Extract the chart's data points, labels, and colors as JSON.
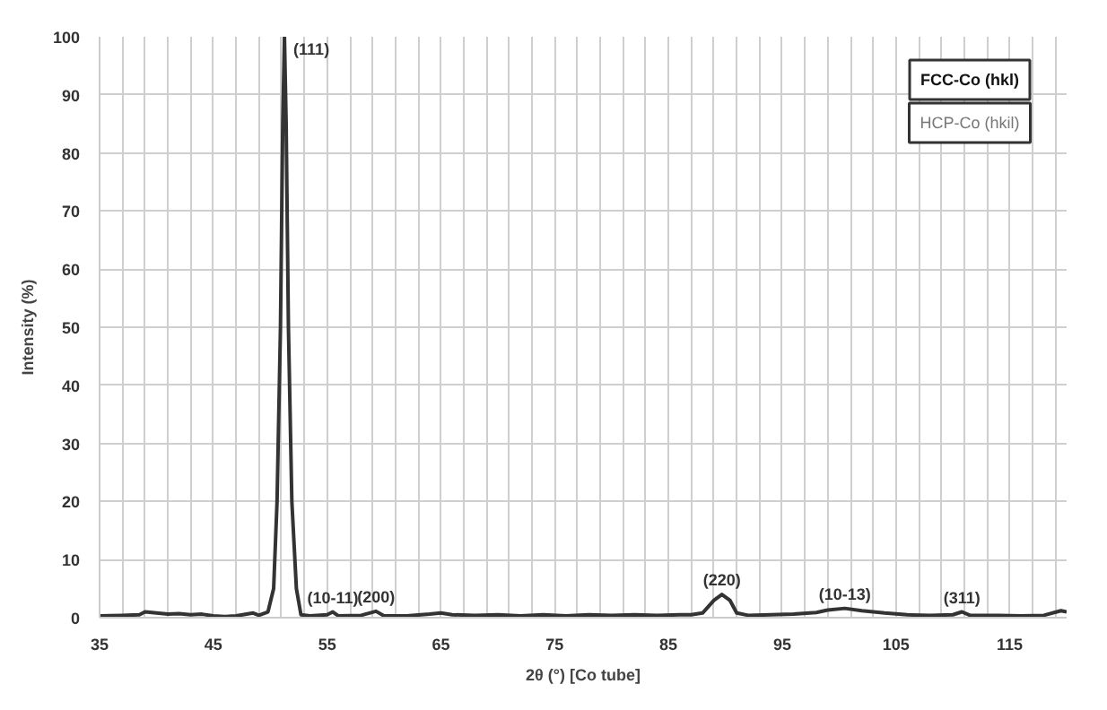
{
  "chart_data": {
    "type": "line",
    "xlabel": "2θ (°) [Co tube]",
    "ylabel": "Intensity (%)",
    "x": [
      35,
      37,
      38.5,
      39,
      40,
      41,
      42,
      43,
      44,
      45,
      46,
      47,
      48.5,
      49,
      49.8,
      50.3,
      50.6,
      50.9,
      51.1,
      51.25,
      51.4,
      51.6,
      51.9,
      52.3,
      52.7,
      53.5,
      55,
      55.5,
      56,
      58,
      59.3,
      60,
      62,
      64,
      65,
      66,
      68,
      70,
      72,
      74,
      76,
      78,
      80,
      82,
      84,
      86,
      87,
      88,
      89,
      89.7,
      90.4,
      91,
      92,
      94,
      96,
      98,
      99,
      100.5,
      102,
      104,
      106,
      108,
      110,
      110.8,
      111.5,
      114,
      116,
      118,
      119.5,
      120
    ],
    "series": [
      {
        "color": "#333333",
        "values": [
          0.3,
          0.4,
          0.5,
          1.0,
          0.8,
          0.6,
          0.7,
          0.5,
          0.6,
          0.3,
          0.2,
          0.3,
          0.8,
          0.4,
          1,
          5,
          20,
          50,
          85,
          100,
          85,
          50,
          20,
          5,
          0.5,
          0.3,
          0.5,
          1.0,
          0.3,
          0.4,
          1.1,
          0.3,
          0.3,
          0.6,
          0.8,
          0.5,
          0.4,
          0.5,
          0.3,
          0.5,
          0.3,
          0.5,
          0.4,
          0.5,
          0.4,
          0.5,
          0.5,
          0.8,
          3,
          4,
          3,
          0.8,
          0.4,
          0.5,
          0.6,
          0.9,
          1.3,
          1.6,
          1.2,
          0.8,
          0.5,
          0.4,
          0.5,
          1.0,
          0.4,
          0.4,
          0.3,
          0.4,
          1.2,
          1.0
        ]
      }
    ],
    "xlim": [
      35,
      120
    ],
    "xticks": [
      35,
      {
        "value": 37,
        "label": null
      },
      {
        "value": 39,
        "label": null
      },
      {
        "value": 41,
        "label": null
      },
      {
        "value": 43,
        "label": null
      },
      45,
      {
        "value": 47,
        "label": null
      },
      {
        "value": 49,
        "label": null
      },
      {
        "value": 51,
        "label": null
      },
      {
        "value": 53,
        "label": null
      },
      55,
      {
        "value": 57,
        "label": null
      },
      {
        "value": 59,
        "label": null
      },
      {
        "value": 61,
        "label": null
      },
      {
        "value": 63,
        "label": null
      },
      65,
      {
        "value": 67,
        "label": null
      },
      {
        "value": 69,
        "label": null
      },
      {
        "value": 71,
        "label": null
      },
      {
        "value": 73,
        "label": null
      },
      75,
      {
        "value": 77,
        "label": null
      },
      {
        "value": 79,
        "label": null
      },
      {
        "value": 81,
        "label": null
      },
      {
        "value": 83,
        "label": null
      },
      85,
      {
        "value": 87,
        "label": null
      },
      {
        "value": 89,
        "label": null
      },
      {
        "value": 91,
        "label": null
      },
      {
        "value": 93,
        "label": null
      },
      95,
      {
        "value": 97,
        "label": null
      },
      {
        "value": 99,
        "label": null
      },
      {
        "value": 101,
        "label": null
      },
      {
        "value": 103,
        "label": null
      },
      105,
      {
        "value": 107,
        "label": null
      },
      {
        "value": 109,
        "label": null
      },
      {
        "value": 111,
        "label": null
      },
      {
        "value": 113,
        "label": null
      },
      115,
      {
        "value": 117,
        "label": null
      },
      {
        "value": 119,
        "label": null
      }
    ],
    "ylim": [
      0,
      100
    ],
    "yticks": [
      0,
      10,
      20,
      30,
      40,
      50,
      60,
      70,
      80,
      90,
      100
    ],
    "grid": true,
    "marker": "none",
    "line_style": "solid",
    "annotations": [
      {
        "text": "(111)",
        "x": 51.25,
        "y": 100
      },
      {
        "text": "(10-11)",
        "x": 55.5,
        "y": 1.0
      },
      {
        "text": "(200)",
        "x": 59.3,
        "y": 1.1
      },
      {
        "text": "(220)",
        "x": 89.7,
        "y": 4
      },
      {
        "text": "(10-13)",
        "x": 100.5,
        "y": 1.6
      },
      {
        "text": "(311)",
        "x": 110.8,
        "y": 1.0
      },
      "FCC-Co (hkl)",
      "HCP-Co (hkil)"
    ]
  }
}
